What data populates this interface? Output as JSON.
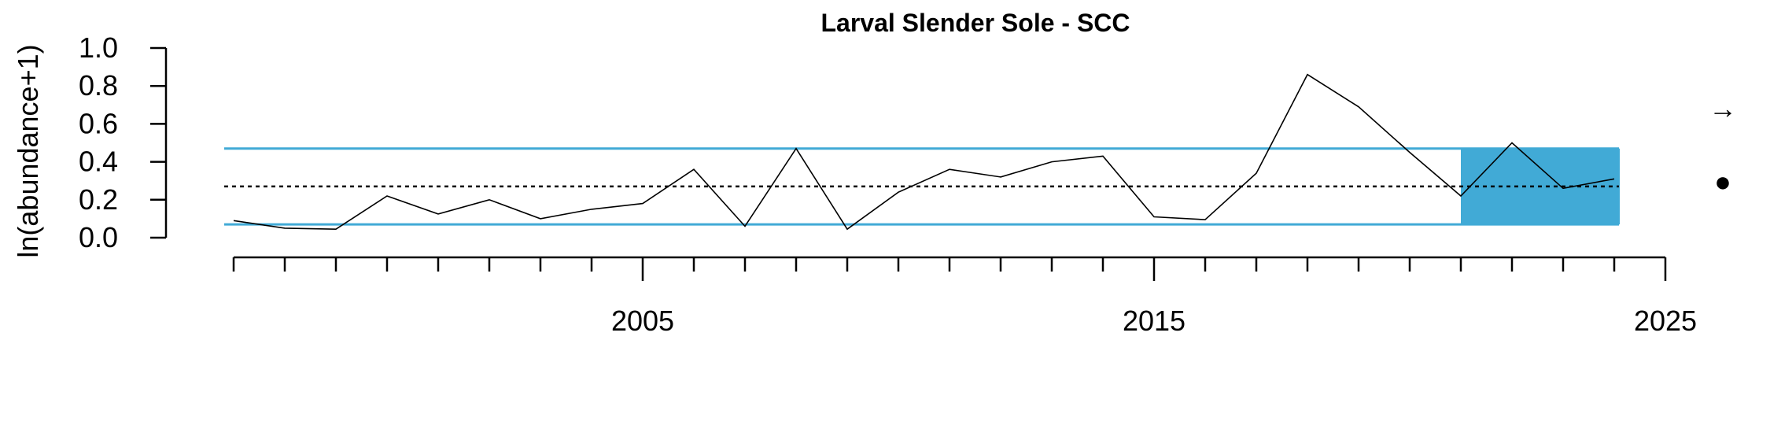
{
  "chart_data": {
    "type": "line",
    "title": "Larval Slender Sole - SCC",
    "xlabel": "",
    "ylabel": "ln(abundance+1)",
    "xlim": [
      1996.8,
      2025
    ],
    "ylim": [
      0,
      1.0
    ],
    "x_ticks_major": [
      2005,
      2015,
      2025
    ],
    "x_tick_labels": [
      "2005",
      "2015",
      "2025"
    ],
    "x_ticks_minor": [
      1997,
      1998,
      1999,
      2000,
      2001,
      2002,
      2003,
      2004,
      2005,
      2006,
      2007,
      2008,
      2009,
      2010,
      2011,
      2012,
      2013,
      2014,
      2015,
      2016,
      2017,
      2018,
      2019,
      2020,
      2021,
      2022,
      2023,
      2024,
      2025
    ],
    "y_ticks": [
      0.0,
      0.2,
      0.4,
      0.6,
      0.8,
      1.0
    ],
    "y_tick_labels": [
      "0.0",
      "0.2",
      "0.4",
      "0.6",
      "0.8",
      "1.0"
    ],
    "series": [
      {
        "x": [
          1997,
          1998,
          1999,
          2000,
          2001,
          2002,
          2003,
          2004,
          2005,
          2006,
          2007,
          2008,
          2009,
          2010,
          2011,
          2012,
          2013,
          2014,
          2015,
          2016,
          2017,
          2018,
          2019,
          2020,
          2021,
          2022,
          2023,
          2024
        ],
        "y": [
          0.09,
          0.05,
          0.045,
          0.22,
          0.125,
          0.2,
          0.1,
          0.15,
          0.18,
          0.36,
          0.06,
          0.47,
          0.045,
          0.24,
          0.36,
          0.32,
          0.4,
          0.43,
          0.11,
          0.095,
          0.34,
          0.86,
          0.69,
          0.45,
          0.22,
          0.5,
          0.26,
          0.31
        ],
        "color": "#000000"
      }
    ],
    "mean": 0.27,
    "upper_sd": 0.47,
    "lower_sd": 0.07,
    "recent_period": [
      2021,
      2024
    ],
    "band_color": "#41AAD6",
    "trend_symbol": "→",
    "mean_status_symbol": "●"
  }
}
